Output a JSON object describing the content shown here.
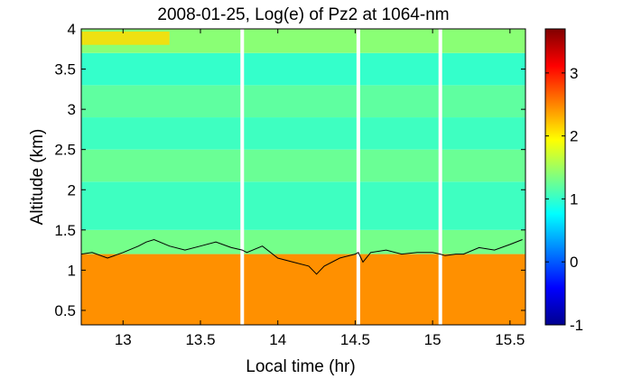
{
  "chart_data": {
    "type": "heatmap",
    "title": "2008-01-25, Log(e) of Pz2 at 1064-nm",
    "xlabel": "Local time (hr)",
    "ylabel": "Altitude (km)",
    "xlim": [
      12.73,
      15.6
    ],
    "ylim": [
      0.32,
      4.0
    ],
    "x_ticks": [
      13,
      13.5,
      14,
      14.5,
      15,
      15.5
    ],
    "y_ticks": [
      0.5,
      1,
      1.5,
      2,
      2.5,
      3,
      3.5,
      4
    ],
    "colorbar": {
      "colormap": "jet",
      "range": [
        -1,
        3.7
      ],
      "ticks": [
        -1,
        0,
        1,
        2,
        3
      ]
    },
    "data_gaps_hr": [
      13.77,
      14.52,
      15.05
    ],
    "layers": [
      {
        "altitude_range_km": [
          0.32,
          1.2
        ],
        "value": 2.45
      },
      {
        "altitude_range_km": [
          1.2,
          1.5
        ],
        "value": 1.3
      },
      {
        "altitude_range_km": [
          1.5,
          2.1
        ],
        "value": 1.05
      },
      {
        "altitude_range_km": [
          2.1,
          2.5
        ],
        "value": 1.25
      },
      {
        "altitude_range_km": [
          2.5,
          2.9
        ],
        "value": 1.05
      },
      {
        "altitude_range_km": [
          2.9,
          3.3
        ],
        "value": 1.2
      },
      {
        "altitude_range_km": [
          3.3,
          3.7
        ],
        "value": 1.0
      },
      {
        "altitude_range_km": [
          3.7,
          4.0
        ],
        "value": 1.4
      }
    ],
    "top_layer_peak": {
      "time_range_hr": [
        12.73,
        13.3
      ],
      "altitude_range_km": [
        3.7,
        4.0
      ],
      "value": 2.1
    },
    "boundary_layer_height": {
      "x": [
        12.73,
        12.8,
        12.9,
        13.0,
        13.1,
        13.15,
        13.2,
        13.3,
        13.4,
        13.5,
        13.6,
        13.7,
        13.77,
        13.8,
        13.9,
        14.0,
        14.1,
        14.2,
        14.25,
        14.3,
        14.4,
        14.5,
        14.52,
        14.55,
        14.6,
        14.7,
        14.8,
        14.9,
        15.0,
        15.05,
        15.08,
        15.15,
        15.2,
        15.3,
        15.4,
        15.5,
        15.58
      ],
      "y": [
        1.2,
        1.22,
        1.15,
        1.22,
        1.3,
        1.35,
        1.38,
        1.3,
        1.25,
        1.3,
        1.35,
        1.28,
        1.25,
        1.22,
        1.3,
        1.15,
        1.1,
        1.05,
        0.95,
        1.05,
        1.15,
        1.2,
        1.22,
        1.1,
        1.22,
        1.25,
        1.2,
        1.22,
        1.22,
        1.2,
        1.18,
        1.2,
        1.2,
        1.28,
        1.25,
        1.32,
        1.38
      ]
    }
  }
}
